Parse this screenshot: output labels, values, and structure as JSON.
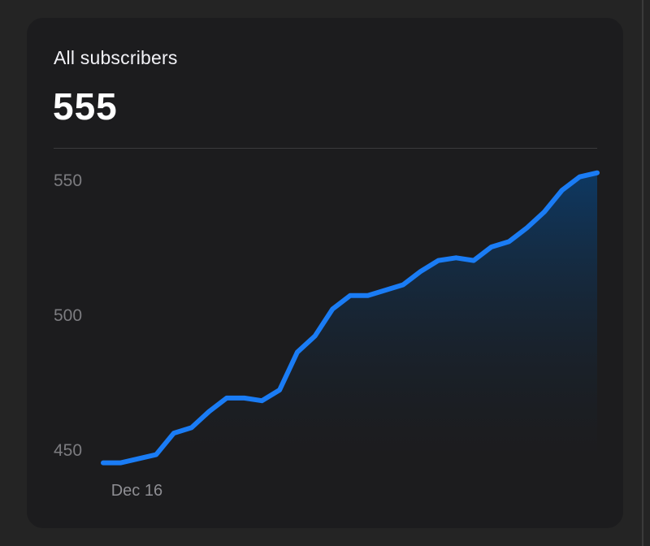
{
  "card": {
    "title": "All subscribers",
    "value": "555"
  },
  "colors": {
    "background": "#242424",
    "card": "#1c1c1e",
    "line": "#1a7cf5",
    "area_top": "#0d3a66",
    "tick_text": "#7c7c80"
  },
  "chart_data": {
    "type": "area",
    "title": "",
    "xlabel": "",
    "ylabel": "",
    "ylim": [
      445,
      555
    ],
    "yticks": [
      450,
      500,
      550
    ],
    "xticks": [
      {
        "index": 1,
        "label": "Dec 16"
      }
    ],
    "grid": false,
    "series": [
      {
        "values": [
          445,
          445,
          446.5,
          448,
          456,
          458,
          464,
          469,
          469,
          468,
          472,
          486,
          492,
          502,
          507,
          507,
          509,
          511,
          516,
          520,
          521,
          520,
          525,
          527,
          532,
          538,
          546,
          551,
          552.5
        ]
      }
    ]
  }
}
